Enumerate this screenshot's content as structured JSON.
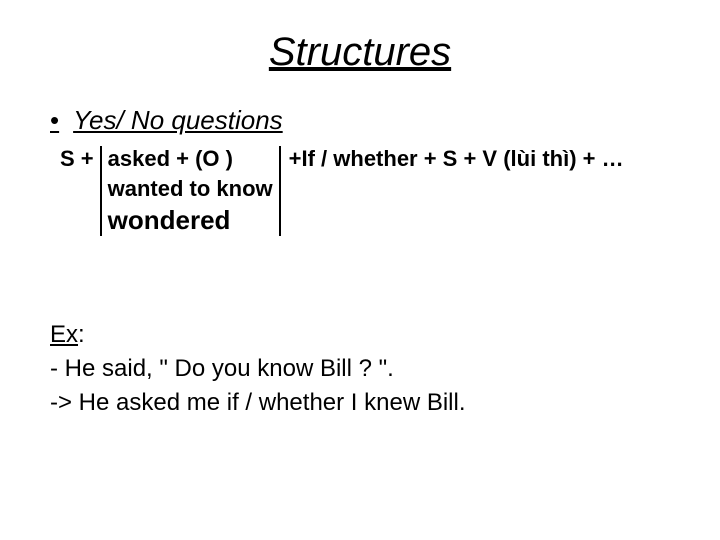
{
  "title": "Structures",
  "bullet": {
    "marker": "•",
    "text": "Yes/ No questions"
  },
  "formula": {
    "prefix": "S +",
    "options": {
      "opt1": "asked + (O )",
      "opt2": "wanted to know",
      "opt3": "wondered"
    },
    "suffix": "+If / whether + S + V (lùi thì) + …"
  },
  "example": {
    "label": "Ex",
    "colon": ":",
    "line1": " -  He said, \" Do you know Bill ? \".",
    "line2": "-> He asked me if / whether I knew Bill."
  },
  "style": {
    "background": "#ffffff",
    "text_color": "#000000",
    "title_fontsize": 40,
    "bullet_fontsize": 26,
    "formula_fontsize": 22,
    "example_fontsize": 24,
    "font_family": "Arial"
  }
}
